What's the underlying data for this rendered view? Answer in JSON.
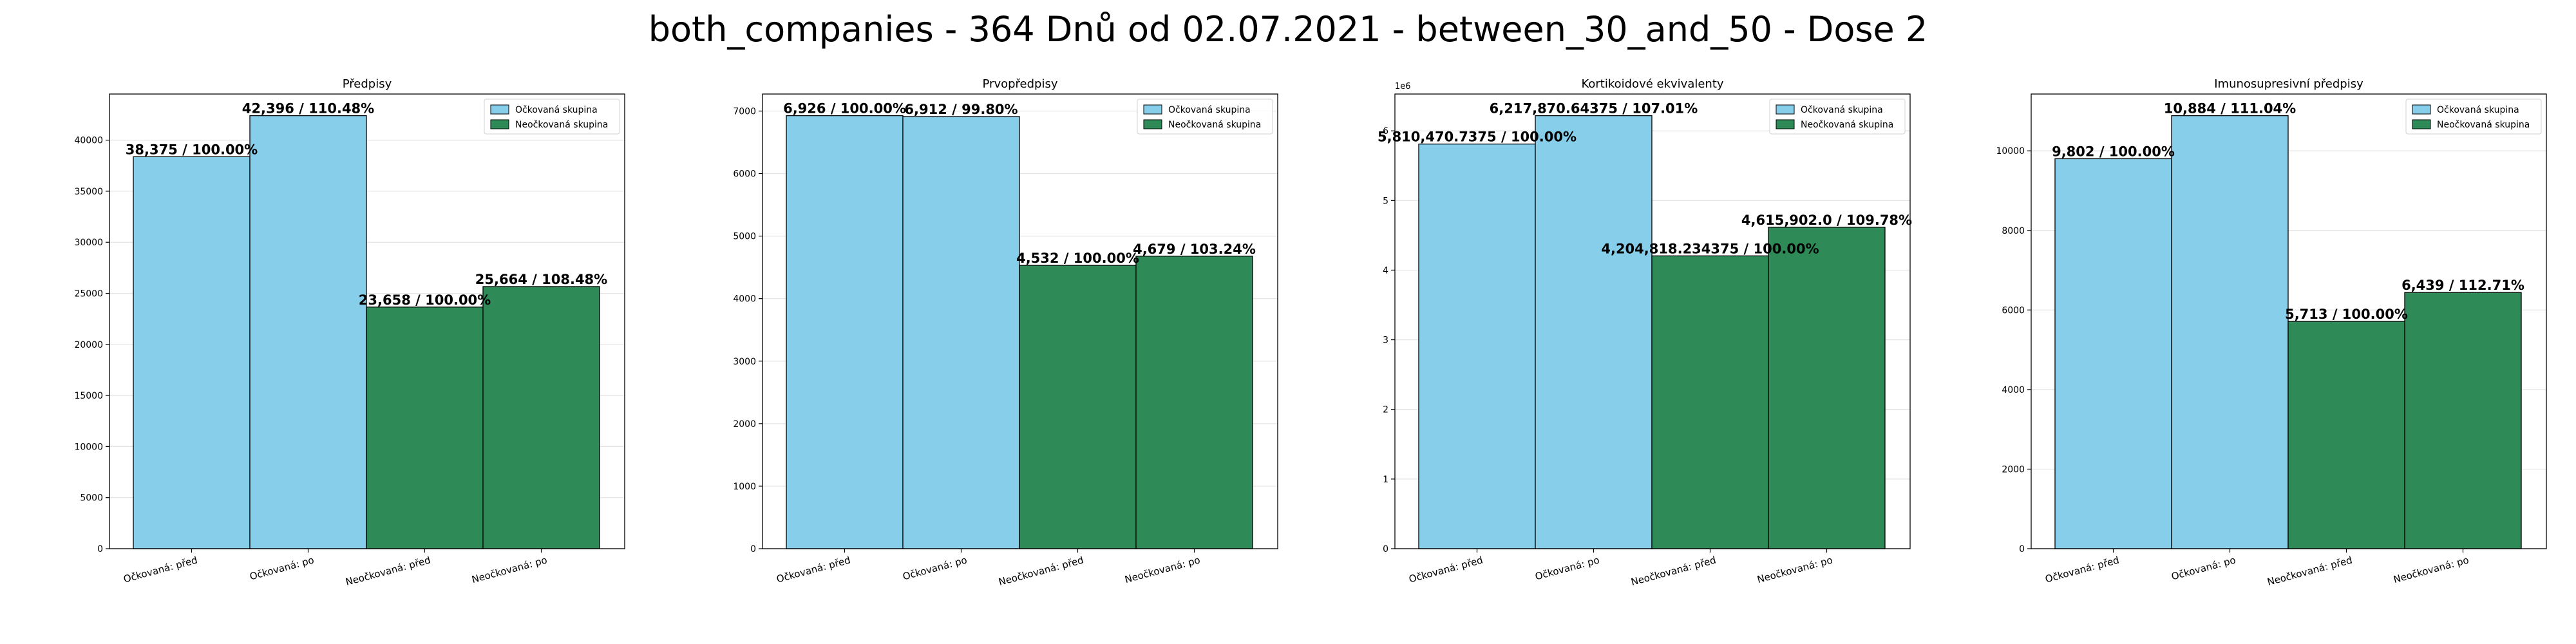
{
  "title": "both_companies - 364 Dnů od 02.07.2021 - between_30_and_50 - Dose 2",
  "legend_labels": [
    "Očkovaná skupina",
    "Neočkovaná skupina"
  ],
  "colors": {
    "vaccinated": "#87ceeb",
    "unvaccinated": "#2e8b57"
  },
  "chart_data": [
    {
      "type": "bar",
      "title": "Předpisy",
      "categories": [
        "Očkovaná: před",
        "Očkovaná: po",
        "Neočkovaná: před",
        "Neočkovaná: po"
      ],
      "values": [
        38375,
        42396,
        23658,
        25664
      ],
      "data_labels": [
        "38,375 / 100.00%",
        "42,396 / 110.48%",
        "23,658 / 100.00%",
        "25,664 / 108.48%"
      ],
      "groups": [
        "vaccinated",
        "vaccinated",
        "unvaccinated",
        "unvaccinated"
      ],
      "yticks": [
        0,
        5000,
        10000,
        15000,
        20000,
        25000,
        30000,
        35000,
        40000
      ],
      "ytick_labels": [
        "0",
        "5000",
        "10000",
        "15000",
        "20000",
        "25000",
        "30000",
        "35000",
        "40000"
      ],
      "ylim": [
        0,
        44515.8
      ],
      "y_offset_label": "",
      "grid": true,
      "legend_position": "top-right"
    },
    {
      "type": "bar",
      "title": "Prvopředpisy",
      "categories": [
        "Očkovaná: před",
        "Očkovaná: po",
        "Neočkovaná: před",
        "Neočkovaná: po"
      ],
      "values": [
        6926,
        6912,
        4532,
        4679
      ],
      "data_labels": [
        "6,926 / 100.00%",
        "6,912 / 99.80%",
        "4,532 / 100.00%",
        "4,679 / 103.24%"
      ],
      "groups": [
        "vaccinated",
        "vaccinated",
        "unvaccinated",
        "unvaccinated"
      ],
      "yticks": [
        0,
        1000,
        2000,
        3000,
        4000,
        5000,
        6000,
        7000
      ],
      "ytick_labels": [
        "0",
        "1000",
        "2000",
        "3000",
        "4000",
        "5000",
        "6000",
        "7000"
      ],
      "ylim": [
        0,
        7272.3
      ],
      "y_offset_label": "",
      "grid": true,
      "legend_position": "top-right"
    },
    {
      "type": "bar",
      "title": "Kortikoidové ekvivalenty",
      "categories": [
        "Očkovaná: před",
        "Očkovaná: po",
        "Neočkovaná: před",
        "Neočkovaná: po"
      ],
      "values": [
        5810470.7375,
        6217870.64375,
        4204818.234375,
        4615902.0
      ],
      "data_labels": [
        "5,810,470.7375 / 100.00%",
        "6,217,870.64375 / 107.01%",
        "4,204,818.234375 / 100.00%",
        "4,615,902.0 / 109.78%"
      ],
      "groups": [
        "vaccinated",
        "vaccinated",
        "unvaccinated",
        "unvaccinated"
      ],
      "yticks": [
        0,
        1000000,
        2000000,
        3000000,
        4000000,
        5000000,
        6000000
      ],
      "ytick_labels": [
        "0",
        "1",
        "2",
        "3",
        "4",
        "5",
        "6"
      ],
      "ylim": [
        0,
        6528764.18
      ],
      "y_offset_label": "1e6",
      "grid": true,
      "legend_position": "top-right"
    },
    {
      "type": "bar",
      "title": "Imunosupresivní předpisy",
      "categories": [
        "Očkovaná: před",
        "Očkovaná: po",
        "Neočkovaná: před",
        "Neočkovaná: po"
      ],
      "values": [
        9802,
        10884,
        5713,
        6439
      ],
      "data_labels": [
        "9,802 / 100.00%",
        "10,884 / 111.04%",
        "5,713 / 100.00%",
        "6,439 / 112.71%"
      ],
      "groups": [
        "vaccinated",
        "vaccinated",
        "unvaccinated",
        "unvaccinated"
      ],
      "yticks": [
        0,
        2000,
        4000,
        6000,
        8000,
        10000
      ],
      "ytick_labels": [
        "0",
        "2000",
        "4000",
        "6000",
        "8000",
        "10000"
      ],
      "ylim": [
        0,
        11428.2
      ],
      "y_offset_label": "",
      "grid": true,
      "legend_position": "top-right"
    }
  ]
}
